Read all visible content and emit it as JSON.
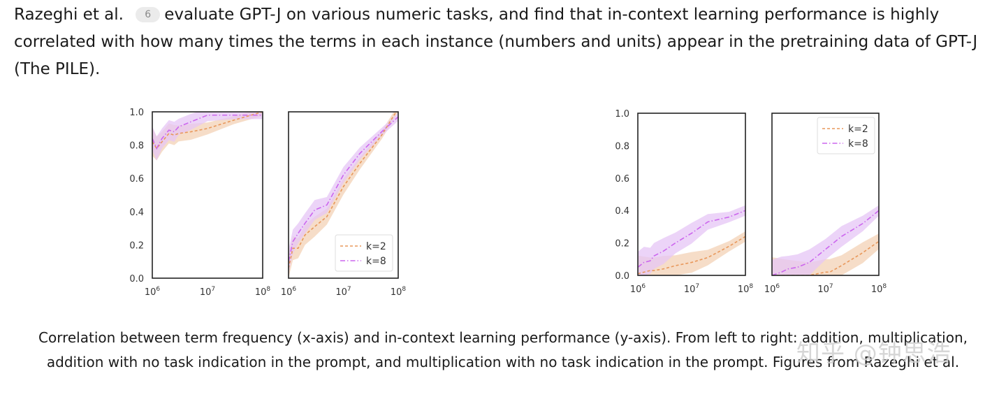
{
  "paragraph": {
    "before_cite": "Razeghi et al. ",
    "cite_number": "6",
    "after_cite": "evaluate GPT-J on various numeric tasks, and find that in-context learning performance is highly correlated with how many times the terms in each instance (numbers and units) appear in the pretraining data of GPT-J (The PILE)."
  },
  "caption": {
    "line1": "Correlation between term frequency (x-axis) and in-context learning performance (y-axis). From left to right: addition, multiplication,",
    "line2": "addition with no task indication in the prompt, and multiplication with no task indication in the prompt. Figures from Razeghi et al."
  },
  "watermark": "知乎 @钟思浩",
  "colors": {
    "k2": "#e8975a",
    "k8": "#cc66ee",
    "k2_band": "#f3d2b5",
    "k8_band": "#e6c6f5"
  },
  "chart_data": [
    {
      "type": "line",
      "xscale": "log",
      "xlim": [
        1000000,
        100000000
      ],
      "ylim": [
        0,
        1.0
      ],
      "x_ticks": [
        "10^6",
        "10^7",
        "10^8"
      ],
      "y_ticks": [
        "0.0",
        "0.2",
        "0.4",
        "0.6",
        "0.8",
        "1.0"
      ],
      "legend": "none",
      "series": [
        {
          "name": "k=2",
          "x": [
            1000000,
            1200000,
            1500000,
            2000000,
            2500000,
            3000000,
            5000000,
            10000000,
            30000000,
            100000000
          ],
          "y": [
            0.82,
            0.78,
            0.82,
            0.87,
            0.86,
            0.87,
            0.88,
            0.9,
            0.95,
            1.0
          ]
        },
        {
          "name": "k=8",
          "x": [
            1000000,
            1200000,
            1500000,
            2000000,
            2500000,
            3000000,
            5000000,
            10000000,
            30000000,
            100000000
          ],
          "y": [
            0.84,
            0.78,
            0.84,
            0.89,
            0.88,
            0.91,
            0.94,
            0.98,
            0.98,
            0.98
          ]
        }
      ]
    },
    {
      "type": "line",
      "xscale": "log",
      "xlim": [
        1000000,
        100000000
      ],
      "ylim": [
        0,
        1.0
      ],
      "x_ticks": [
        "10^6",
        "10^7",
        "10^8"
      ],
      "legend": "bottom-right",
      "series": [
        {
          "name": "k=2",
          "x": [
            1000000,
            1200000,
            1500000,
            2000000,
            3000000,
            5000000,
            10000000,
            20000000,
            50000000,
            100000000
          ],
          "y": [
            0.06,
            0.18,
            0.18,
            0.26,
            0.31,
            0.37,
            0.55,
            0.69,
            0.86,
            1.02
          ]
        },
        {
          "name": "k=8",
          "x": [
            1000000,
            1200000,
            1500000,
            2000000,
            3000000,
            5000000,
            10000000,
            20000000,
            50000000,
            100000000
          ],
          "y": [
            0.1,
            0.22,
            0.27,
            0.33,
            0.41,
            0.44,
            0.62,
            0.75,
            0.88,
            0.97
          ]
        }
      ]
    },
    {
      "type": "line",
      "xscale": "log",
      "xlim": [
        1000000,
        100000000
      ],
      "ylim": [
        0,
        1.0
      ],
      "x_ticks": [
        "10^6",
        "10^7",
        "10^8"
      ],
      "y_ticks": [
        "0.0",
        "0.2",
        "0.4",
        "0.6",
        "0.8",
        "1.0"
      ],
      "legend": "none",
      "series": [
        {
          "name": "k=2",
          "x": [
            1000000,
            1300000,
            1700000,
            2000000,
            3000000,
            5000000,
            10000000,
            20000000,
            50000000,
            100000000
          ],
          "y": [
            0.01,
            0.02,
            0.03,
            0.03,
            0.04,
            0.06,
            0.08,
            0.11,
            0.18,
            0.24
          ]
        },
        {
          "name": "k=8",
          "x": [
            1000000,
            1300000,
            1700000,
            2000000,
            3000000,
            5000000,
            10000000,
            20000000,
            50000000,
            100000000
          ],
          "y": [
            0.05,
            0.08,
            0.09,
            0.12,
            0.15,
            0.2,
            0.26,
            0.33,
            0.36,
            0.4
          ]
        }
      ]
    },
    {
      "type": "line",
      "xscale": "log",
      "xlim": [
        1000000,
        100000000
      ],
      "ylim": [
        0,
        1.0
      ],
      "x_ticks": [
        "10^6",
        "10^7",
        "10^8"
      ],
      "legend": "top-right",
      "series": [
        {
          "name": "k=2",
          "x": [
            1000000,
            2000000,
            5000000,
            10000000,
            12000000,
            20000000,
            50000000,
            100000000
          ],
          "y": [
            0.0,
            0.0,
            0.0,
            0.02,
            0.02,
            0.06,
            0.14,
            0.21
          ]
        },
        {
          "name": "k=8",
          "x": [
            1000000,
            1500000,
            2000000,
            3000000,
            5000000,
            10000000,
            20000000,
            50000000,
            100000000
          ],
          "y": [
            0.0,
            0.02,
            0.04,
            0.05,
            0.08,
            0.16,
            0.24,
            0.32,
            0.4
          ]
        }
      ]
    }
  ]
}
